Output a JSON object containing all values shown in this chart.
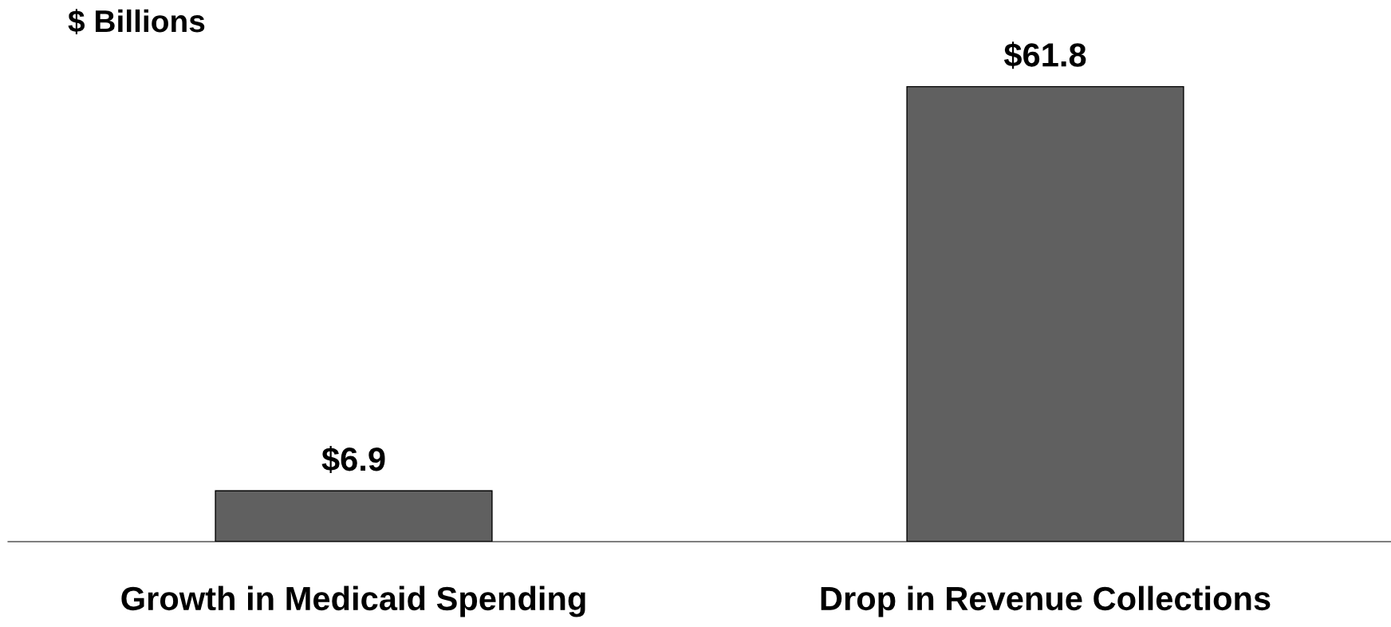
{
  "chart_data": {
    "type": "bar",
    "ylabel": "$ Billions",
    "categories": [
      "Growth in Medicaid Spending",
      "Drop in Revenue Collections"
    ],
    "values": [
      6.9,
      61.8
    ],
    "value_labels": [
      "$6.9",
      "$61.8"
    ],
    "color": "#606060",
    "grid": false,
    "legend": false
  }
}
